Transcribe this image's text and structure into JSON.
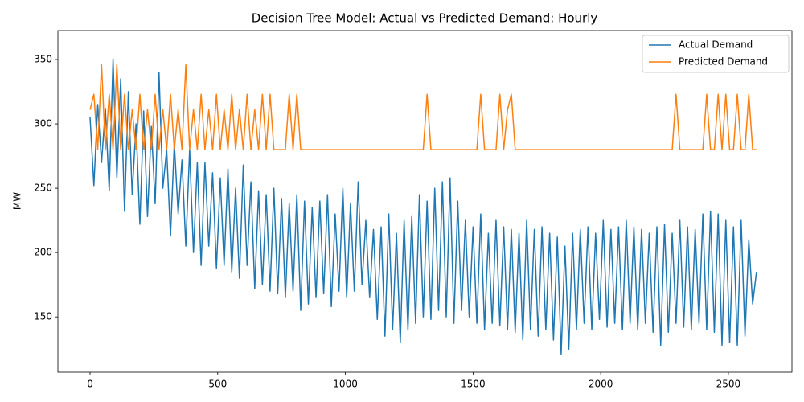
{
  "chart_data": {
    "type": "line",
    "title": "Decision Tree Model: Actual vs Predicted Demand:  Hourly",
    "y_label": "MW",
    "xlim": [
      -126,
      2749
    ],
    "ylim": [
      107,
      372.5
    ],
    "xticks": [
      0,
      500,
      1000,
      1500,
      2000,
      2500
    ],
    "yticks": [
      150,
      200,
      250,
      300,
      350
    ],
    "grid": false,
    "legend_position": "upper-right",
    "x": [
      0,
      15,
      30,
      45,
      60,
      75,
      90,
      105,
      120,
      135,
      150,
      165,
      180,
      195,
      210,
      225,
      240,
      255,
      270,
      285,
      300,
      315,
      330,
      345,
      360,
      375,
      390,
      405,
      420,
      435,
      450,
      465,
      480,
      495,
      510,
      525,
      540,
      555,
      570,
      585,
      600,
      615,
      630,
      645,
      660,
      675,
      690,
      705,
      720,
      735,
      750,
      765,
      780,
      795,
      810,
      825,
      840,
      855,
      870,
      885,
      900,
      915,
      930,
      945,
      960,
      975,
      990,
      1005,
      1020,
      1035,
      1050,
      1065,
      1080,
      1095,
      1110,
      1125,
      1140,
      1155,
      1170,
      1185,
      1200,
      1215,
      1230,
      1245,
      1260,
      1275,
      1290,
      1305,
      1320,
      1335,
      1350,
      1365,
      1380,
      1395,
      1410,
      1425,
      1440,
      1455,
      1470,
      1485,
      1500,
      1515,
      1530,
      1545,
      1560,
      1575,
      1590,
      1605,
      1620,
      1635,
      1650,
      1665,
      1680,
      1695,
      1710,
      1725,
      1740,
      1755,
      1770,
      1785,
      1800,
      1815,
      1830,
      1845,
      1860,
      1875,
      1890,
      1905,
      1920,
      1935,
      1950,
      1965,
      1980,
      1995,
      2010,
      2025,
      2040,
      2055,
      2070,
      2085,
      2100,
      2115,
      2130,
      2145,
      2160,
      2175,
      2190,
      2205,
      2220,
      2235,
      2250,
      2265,
      2280,
      2295,
      2310,
      2325,
      2340,
      2355,
      2370,
      2385,
      2400,
      2415,
      2430,
      2445,
      2460,
      2475,
      2490,
      2505,
      2520,
      2535,
      2550,
      2565,
      2580,
      2595,
      2610
    ],
    "series": [
      {
        "name": "Actual Demand",
        "color": "#1f77b4",
        "values": [
          305,
          252,
          315,
          270,
          312,
          248,
          350,
          258,
          335,
          232,
          325,
          245,
          300,
          222,
          310,
          228,
          298,
          238,
          340,
          250,
          280,
          213,
          285,
          230,
          272,
          205,
          280,
          200,
          270,
          190,
          270,
          205,
          262,
          188,
          258,
          190,
          265,
          185,
          250,
          180,
          268,
          190,
          255,
          172,
          248,
          175,
          245,
          170,
          250,
          168,
          242,
          165,
          238,
          170,
          245,
          155,
          240,
          160,
          235,
          165,
          240,
          168,
          245,
          158,
          230,
          170,
          250,
          165,
          238,
          170,
          255,
          175,
          225,
          165,
          218,
          148,
          220,
          135,
          230,
          140,
          215,
          130,
          225,
          140,
          228,
          145,
          245,
          150,
          240,
          148,
          250,
          155,
          255,
          150,
          258,
          145,
          240,
          155,
          225,
          150,
          220,
          145,
          230,
          140,
          215,
          145,
          225,
          143,
          220,
          140,
          218,
          138,
          215,
          132,
          225,
          140,
          218,
          135,
          220,
          140,
          215,
          132,
          212,
          121,
          205,
          125,
          215,
          140,
          218,
          145,
          220,
          140,
          215,
          148,
          225,
          142,
          218,
          145,
          220,
          140,
          225,
          145,
          220,
          140,
          218,
          145,
          215,
          138,
          220,
          128,
          222,
          138,
          215,
          145,
          225,
          142,
          220,
          140,
          218,
          145,
          230,
          140,
          232,
          138,
          230,
          128,
          225,
          130,
          220,
          128,
          225,
          135,
          210,
          160,
          185
        ]
      },
      {
        "name": "Predicted Demand",
        "color": "#ff7f0e",
        "values": [
          311,
          323,
          280,
          346,
          280,
          323,
          280,
          346,
          280,
          323,
          280,
          311,
          280,
          323,
          280,
          311,
          280,
          323,
          280,
          311,
          280,
          323,
          280,
          311,
          280,
          346,
          280,
          311,
          280,
          323,
          280,
          311,
          280,
          323,
          280,
          311,
          280,
          323,
          280,
          311,
          280,
          323,
          280,
          311,
          280,
          323,
          280,
          323,
          280,
          280,
          280,
          280,
          323,
          280,
          323,
          280,
          280,
          280,
          280,
          280,
          280,
          280,
          280,
          280,
          280,
          280,
          280,
          280,
          280,
          280,
          280,
          280,
          280,
          280,
          280,
          280,
          280,
          280,
          280,
          280,
          280,
          280,
          280,
          280,
          280,
          280,
          280,
          280,
          323,
          280,
          280,
          280,
          280,
          280,
          280,
          280,
          280,
          280,
          280,
          280,
          280,
          280,
          323,
          280,
          280,
          280,
          280,
          323,
          280,
          311,
          323,
          280,
          280,
          280,
          280,
          280,
          280,
          280,
          280,
          280,
          280,
          280,
          280,
          280,
          280,
          280,
          280,
          280,
          280,
          280,
          280,
          280,
          280,
          280,
          280,
          280,
          280,
          280,
          280,
          280,
          280,
          280,
          280,
          280,
          280,
          280,
          280,
          280,
          280,
          280,
          280,
          280,
          280,
          323,
          280,
          280,
          280,
          280,
          280,
          280,
          280,
          323,
          280,
          280,
          323,
          280,
          323,
          280,
          280,
          323,
          280,
          280,
          323,
          280,
          280
        ]
      }
    ]
  }
}
